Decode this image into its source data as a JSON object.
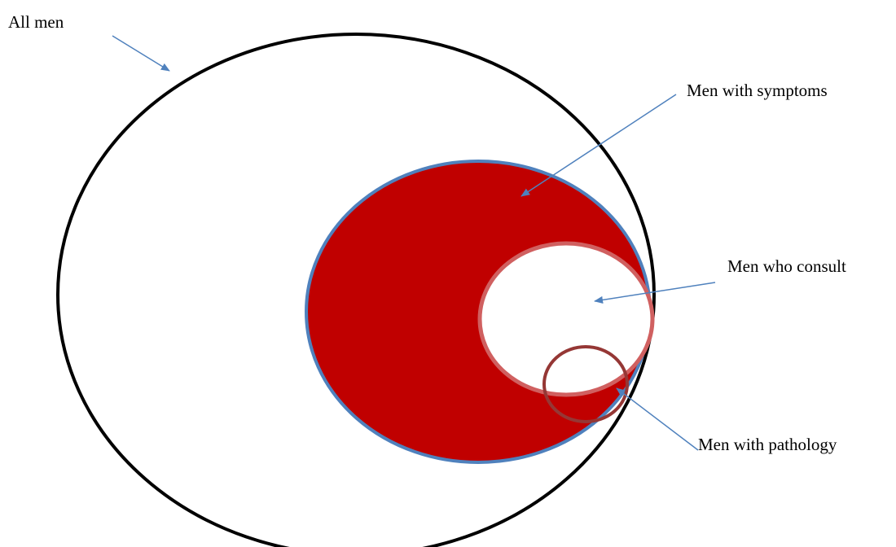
{
  "labels": {
    "all_men": "All men",
    "symptoms": "Men with symptoms",
    "consult": "Men who consult",
    "pathology": "Men with pathology"
  },
  "colors": {
    "all_men_outline": "#000000",
    "symptoms_fill": "#C00000",
    "symptoms_outline": "#4F81BD",
    "consult_fill": "#FFFFFF",
    "consult_outline": "#D06060",
    "pathology_outline": "#953735",
    "arrow": "#4F81BD"
  }
}
